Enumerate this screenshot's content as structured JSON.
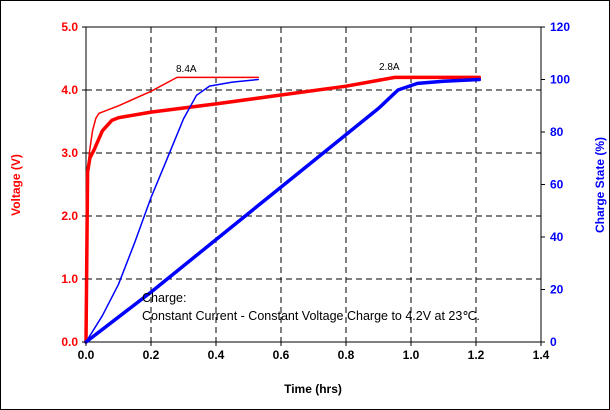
{
  "chart_data": {
    "type": "line",
    "xlabel": "Time (hrs)",
    "ylabel_left": "Voltage (V)",
    "ylabel_right": "Charge State (%)",
    "xlim": [
      0,
      1.4
    ],
    "ylim_left": [
      0,
      5
    ],
    "ylim_right": [
      0,
      120
    ],
    "x_ticks": [
      "0.0",
      "0.2",
      "0.4",
      "0.6",
      "0.8",
      "1.0",
      "1.2",
      "1.4"
    ],
    "y_left_ticks": [
      "0.0",
      "1.0",
      "2.0",
      "3.0",
      "4.0",
      "5.0"
    ],
    "y_right_ticks": [
      "0",
      "20",
      "40",
      "60",
      "80",
      "100",
      "120"
    ],
    "grid": "dashed",
    "colors": {
      "voltage": "#ff0000",
      "charge": "#0000ff"
    },
    "annotations": {
      "label_high_current": "8.4A",
      "label_low_current": "2.8A",
      "note_line1": "Charge:",
      "note_line2": "Constant Current - Constant Voltage Charge to 4.2V at 23℃."
    },
    "series": [
      {
        "axis": "left",
        "color": "#ff0000",
        "stroke": "thin",
        "points": [
          [
            0,
            0
          ],
          [
            0.004,
            2.5
          ],
          [
            0.01,
            3.0
          ],
          [
            0.02,
            3.35
          ],
          [
            0.03,
            3.55
          ],
          [
            0.04,
            3.63
          ],
          [
            0.1,
            3.75
          ],
          [
            0.2,
            3.98
          ],
          [
            0.28,
            4.2
          ],
          [
            0.53,
            4.2
          ]
        ]
      },
      {
        "axis": "left",
        "color": "#ff0000",
        "stroke": "thick",
        "points": [
          [
            0,
            0
          ],
          [
            0.005,
            2.7
          ],
          [
            0.012,
            2.92
          ],
          [
            0.025,
            3.05
          ],
          [
            0.05,
            3.35
          ],
          [
            0.08,
            3.52
          ],
          [
            0.1,
            3.56
          ],
          [
            0.2,
            3.65
          ],
          [
            0.4,
            3.78
          ],
          [
            0.6,
            3.92
          ],
          [
            0.8,
            4.06
          ],
          [
            0.95,
            4.2
          ],
          [
            1.21,
            4.2
          ]
        ]
      },
      {
        "axis": "right",
        "color": "#0000ff",
        "stroke": "thin",
        "points": [
          [
            0,
            0
          ],
          [
            0.05,
            10
          ],
          [
            0.1,
            22
          ],
          [
            0.15,
            38
          ],
          [
            0.2,
            55
          ],
          [
            0.25,
            70
          ],
          [
            0.3,
            85
          ],
          [
            0.34,
            94
          ],
          [
            0.38,
            97.5
          ],
          [
            0.45,
            99
          ],
          [
            0.53,
            100
          ]
        ]
      },
      {
        "axis": "right",
        "color": "#0000ff",
        "stroke": "thick",
        "points": [
          [
            0,
            0
          ],
          [
            0.2,
            19
          ],
          [
            0.4,
            39
          ],
          [
            0.6,
            59
          ],
          [
            0.8,
            79
          ],
          [
            0.9,
            89
          ],
          [
            0.96,
            96
          ],
          [
            1.02,
            98.5
          ],
          [
            1.1,
            99.3
          ],
          [
            1.21,
            100
          ]
        ]
      }
    ]
  }
}
